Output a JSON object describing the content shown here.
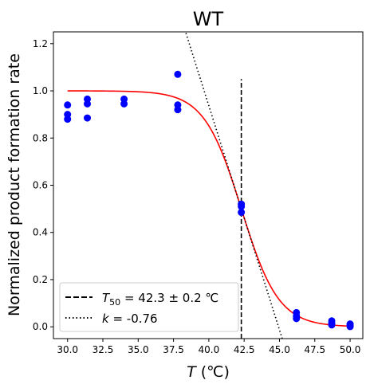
{
  "chart_data": {
    "type": "scatter",
    "title": "WT",
    "xlabel_var": "T",
    "xlabel_unit": " (℃)",
    "ylabel": "Normalized product formation rate",
    "xlim": [
      29.0,
      50.9
    ],
    "ylim": [
      -0.05,
      1.25
    ],
    "xticks": [
      "30.0",
      "32.5",
      "35.0",
      "37.5",
      "40.0",
      "42.5",
      "45.0",
      "47.5",
      "50.0"
    ],
    "xtick_values": [
      30.0,
      32.5,
      35.0,
      37.5,
      40.0,
      42.5,
      45.0,
      47.5,
      50.0
    ],
    "yticks": [
      "0.0",
      "0.2",
      "0.4",
      "0.6",
      "0.8",
      "1.0",
      "1.2"
    ],
    "ytick_values": [
      0.0,
      0.2,
      0.4,
      0.6,
      0.8,
      1.0,
      1.2
    ],
    "points": {
      "color": "#0000ff",
      "data": [
        {
          "x": 30.0,
          "y": 0.94
        },
        {
          "x": 30.0,
          "y": 0.9
        },
        {
          "x": 30.0,
          "y": 0.88
        },
        {
          "x": 31.4,
          "y": 0.965
        },
        {
          "x": 31.4,
          "y": 0.945
        },
        {
          "x": 31.4,
          "y": 0.885
        },
        {
          "x": 34.0,
          "y": 0.965
        },
        {
          "x": 34.0,
          "y": 0.945
        },
        {
          "x": 37.8,
          "y": 1.07
        },
        {
          "x": 37.8,
          "y": 0.94
        },
        {
          "x": 37.8,
          "y": 0.92
        },
        {
          "x": 42.3,
          "y": 0.52
        },
        {
          "x": 42.3,
          "y": 0.51
        },
        {
          "x": 42.3,
          "y": 0.485
        },
        {
          "x": 46.2,
          "y": 0.06
        },
        {
          "x": 46.2,
          "y": 0.045
        },
        {
          "x": 46.2,
          "y": 0.035
        },
        {
          "x": 48.7,
          "y": 0.025
        },
        {
          "x": 48.7,
          "y": 0.015
        },
        {
          "x": 48.7,
          "y": 0.008
        },
        {
          "x": 50.0,
          "y": 0.012
        },
        {
          "x": 50.0,
          "y": 0.006
        },
        {
          "x": 50.0,
          "y": 0.001
        }
      ]
    },
    "fit": {
      "color": "#ff0000",
      "T50": 42.3,
      "k": -0.76,
      "top": 1.0,
      "x_start": 30.0,
      "x_end": 50.0
    },
    "t50_line": {
      "x": 42.3,
      "y_from": -0.05,
      "y_to": 1.05,
      "color": "#000000"
    },
    "slope_line": {
      "x_from": 38.0,
      "x_to": 45.2,
      "color": "#000000"
    },
    "legend": {
      "position": "lower-left",
      "t50_var": "T",
      "t50_sub": "50",
      "t50_text": " = 42.3 ± 0.2 ℃",
      "k_var": "k",
      "k_text": " = -0.76"
    }
  }
}
